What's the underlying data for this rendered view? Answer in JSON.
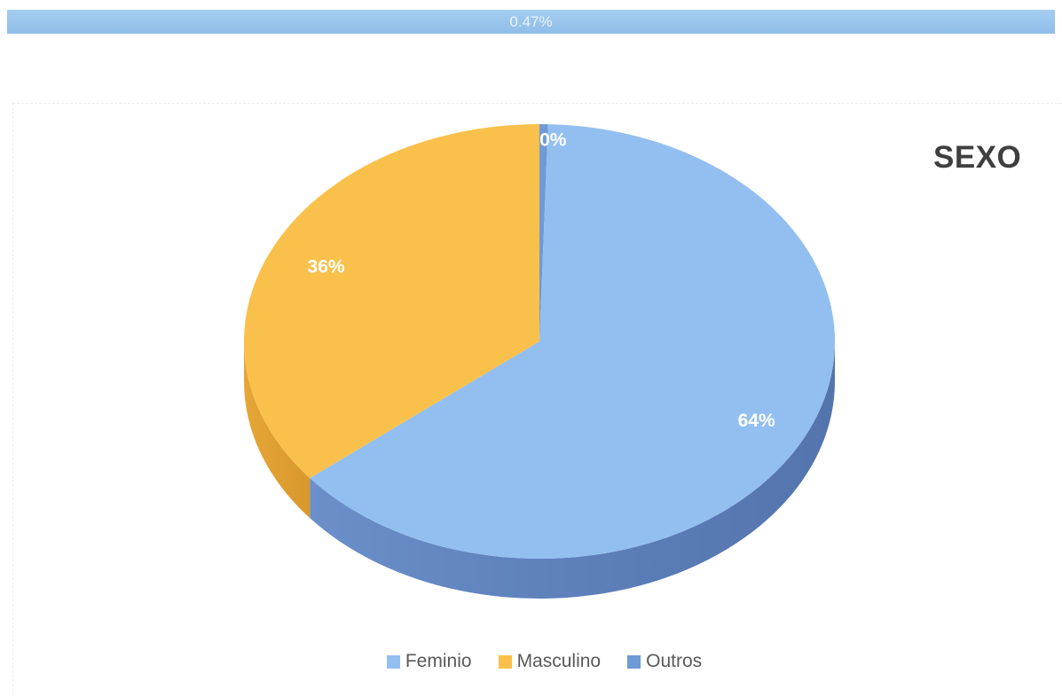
{
  "top_bar": {
    "label": "0.47%",
    "color": "#9cc7ee"
  },
  "chart_data": {
    "type": "pie",
    "style": "3d",
    "title": "SEXO",
    "legend_position": "bottom",
    "series": [
      {
        "name": "",
        "categories": [
          "Feminio",
          "Masculino",
          "Outros"
        ],
        "values": [
          64,
          36,
          0.47
        ],
        "data_labels": [
          "64%",
          "36%",
          "0%"
        ],
        "colors": [
          "#93bff0",
          "#f9c14c",
          "#6f9ad6"
        ]
      }
    ]
  }
}
